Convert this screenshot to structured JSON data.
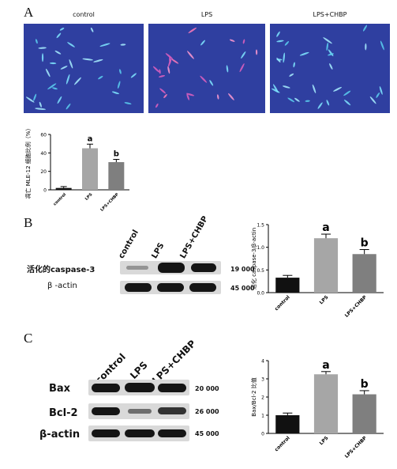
{
  "panel_A": {
    "letter": "A",
    "images": [
      {
        "title": "control",
        "cells": "cyan"
      },
      {
        "title": "LPS",
        "cells": "pink"
      },
      {
        "title": "LPS+CHBP",
        "cells": "cyan"
      }
    ]
  },
  "panel_B": {
    "letter": "B",
    "lanes": [
      "control",
      "LPS",
      "LPS+CHBP"
    ],
    "rows": [
      {
        "label": "活化的caspase-3",
        "mw": "19 000"
      },
      {
        "label": "β -actin",
        "mw": "45 000"
      }
    ]
  },
  "panel_C": {
    "letter": "C",
    "lanes": [
      "control",
      "LPS",
      "LPS+CHBP"
    ],
    "rows": [
      {
        "label": "Bax",
        "mw": "20 000"
      },
      {
        "label": "Bcl-2",
        "mw": "26 000"
      },
      {
        "label": "β-actin",
        "mw": "45 000"
      }
    ]
  },
  "colors": {
    "bar_control": "#111111",
    "bar_lps": "#a6a6a6",
    "bar_chbp": "#7f7f7f",
    "micro_bg": "#2f3fa0"
  },
  "chart_data": [
    {
      "type": "bar",
      "ylabel": "凋亡 MLE-12 细胞比例（%）",
      "categories": [
        "control",
        "LPS",
        "LPS+CHBP"
      ],
      "values": [
        2,
        45,
        30
      ],
      "errors": [
        1.5,
        4.5,
        3
      ],
      "annotations": [
        "",
        "a",
        "b"
      ],
      "ylim": [
        0,
        60
      ],
      "yticks": [
        0,
        20,
        40,
        60
      ]
    },
    {
      "type": "bar",
      "ylabel": "活化 caspase-3/β-actin",
      "categories": [
        "control",
        "LPS",
        "LPS+CHBP"
      ],
      "values": [
        0.33,
        1.2,
        0.85
      ],
      "errors": [
        0.05,
        0.09,
        0.1
      ],
      "annotations": [
        "",
        "a",
        "b"
      ],
      "ylim": [
        0,
        1.5
      ],
      "yticks": [
        0.0,
        0.5,
        1.0,
        1.5
      ],
      "ytick_labels": [
        "0.0",
        "0.5",
        "1.0",
        "1.5"
      ]
    },
    {
      "type": "bar",
      "ylabel": "Bax/Bcl-2 比值",
      "categories": [
        "control",
        "LPS",
        "LPS+CHBP"
      ],
      "values": [
        1.0,
        3.25,
        2.15
      ],
      "errors": [
        0.12,
        0.15,
        0.2
      ],
      "annotations": [
        "",
        "a",
        "b"
      ],
      "ylim": [
        0,
        4
      ],
      "yticks": [
        0,
        1,
        2,
        3,
        4
      ]
    }
  ]
}
